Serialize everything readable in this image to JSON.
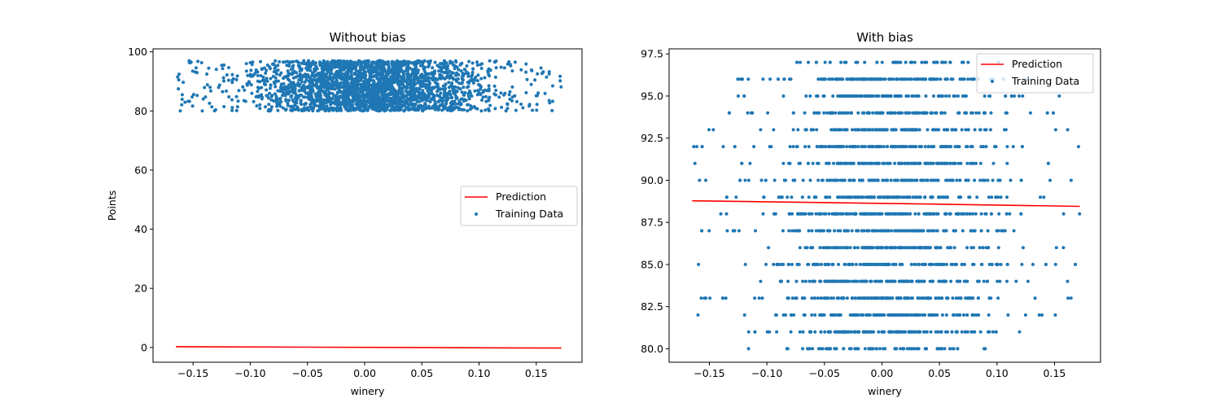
{
  "chart_data": [
    {
      "type": "scatter",
      "title": "Without bias",
      "xlabel": "winery",
      "ylabel": "Points",
      "xlim": [
        -0.185,
        0.19
      ],
      "ylim": [
        -5,
        101
      ],
      "xticks": [
        -0.15,
        -0.1,
        -0.05,
        0.0,
        0.05,
        0.1,
        0.15
      ],
      "xtick_labels": [
        "−0.15",
        "−0.10",
        "−0.05",
        "0.00",
        "0.05",
        "0.10",
        "0.15"
      ],
      "yticks": [
        0,
        20,
        40,
        60,
        80,
        100
      ],
      "ytick_labels": [
        "0",
        "20",
        "40",
        "60",
        "80",
        "100"
      ],
      "grid": false,
      "legend": {
        "placement": "center-right",
        "entries": [
          "Prediction",
          "Training Data"
        ]
      },
      "series": [
        {
          "name": "Prediction",
          "kind": "line",
          "color": "#ff0000",
          "x": [
            -0.165,
            0.172
          ],
          "y": [
            0.25,
            -0.2
          ]
        },
        {
          "name": "Training Data",
          "kind": "scatter",
          "color": "#1f77b4",
          "x_range": [
            -0.165,
            0.172
          ],
          "y_range": [
            80,
            97
          ],
          "y_integer": false,
          "dense_x_range": [
            -0.13,
            0.14
          ]
        }
      ]
    },
    {
      "type": "scatter",
      "title": "With bias",
      "xlabel": "winery",
      "ylabel": "",
      "xlim": [
        -0.185,
        0.19
      ],
      "ylim": [
        79.2,
        97.8
      ],
      "xticks": [
        -0.15,
        -0.1,
        -0.05,
        0.0,
        0.05,
        0.1,
        0.15
      ],
      "xtick_labels": [
        "−0.15",
        "−0.10",
        "−0.05",
        "0.00",
        "0.05",
        "0.10",
        "0.15"
      ],
      "yticks": [
        80.0,
        82.5,
        85.0,
        87.5,
        90.0,
        92.5,
        95.0,
        97.5
      ],
      "ytick_labels": [
        "80.0",
        "82.5",
        "85.0",
        "87.5",
        "90.0",
        "92.5",
        "95.0",
        "97.5"
      ],
      "grid": false,
      "legend": {
        "placement": "top-right",
        "entries": [
          "Prediction",
          "Training Data"
        ]
      },
      "series": [
        {
          "name": "Prediction",
          "kind": "line",
          "color": "#ff0000",
          "x": [
            -0.165,
            0.03,
            0.172
          ],
          "y": [
            88.78,
            88.6,
            88.45
          ]
        },
        {
          "name": "Training Data",
          "kind": "scatter",
          "color": "#1f77b4",
          "x_range": [
            -0.165,
            0.172
          ],
          "y_range": [
            80,
            97
          ],
          "y_integer": true,
          "dense_x_range": [
            -0.13,
            0.14
          ]
        }
      ]
    }
  ]
}
